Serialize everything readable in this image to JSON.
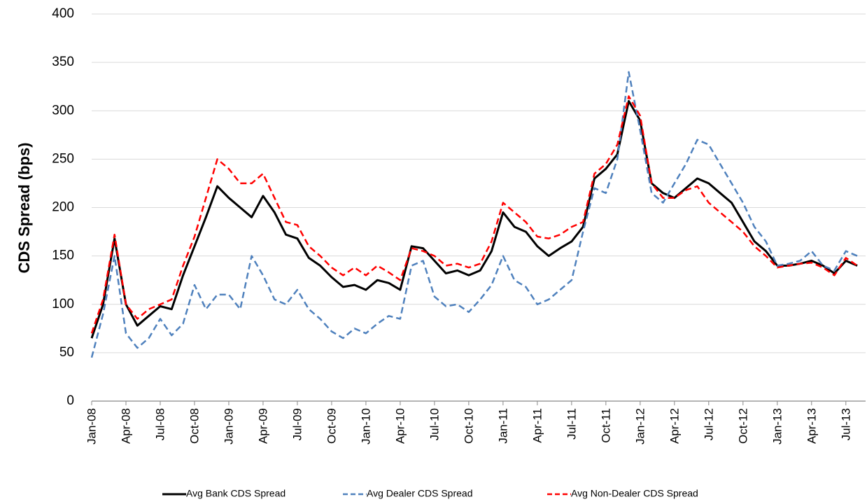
{
  "chart_data": {
    "type": "line",
    "y_label": "CDS Spread (bps)",
    "categories": [
      "Jan-08",
      null,
      null,
      "Apr-08",
      null,
      null,
      "Jul-08",
      null,
      null,
      "Oct-08",
      null,
      null,
      "Jan-09",
      null,
      null,
      "Apr-09",
      null,
      null,
      "Jul-09",
      null,
      null,
      "Oct-09",
      null,
      null,
      "Jan-10",
      null,
      null,
      "Apr-10",
      null,
      null,
      "Jul-10",
      null,
      null,
      "Oct-10",
      null,
      null,
      "Jan-11",
      null,
      null,
      "Apr-11",
      null,
      null,
      "Jul-11",
      null,
      null,
      "Oct-11",
      null,
      null,
      "Jan-12",
      null,
      null,
      "Apr-12",
      null,
      null,
      "Jul-12",
      null,
      null,
      "Oct-12",
      null,
      null,
      "Jan-13",
      null,
      null,
      "Apr-13",
      null,
      null,
      "Jul-13",
      null
    ],
    "series": [
      {
        "name": "Avg Bank CDS Spread",
        "color": "#000000",
        "dash": "solid",
        "values": [
          65,
          100,
          168,
          100,
          78,
          88,
          98,
          95,
          130,
          160,
          190,
          222,
          210,
          200,
          190,
          212,
          195,
          172,
          168,
          148,
          140,
          128,
          118,
          120,
          115,
          125,
          122,
          115,
          160,
          158,
          145,
          132,
          135,
          130,
          135,
          155,
          195,
          180,
          175,
          160,
          150,
          158,
          165,
          180,
          230,
          240,
          255,
          310,
          290,
          225,
          215,
          210,
          220,
          230,
          225,
          215,
          205,
          185,
          165,
          155,
          140,
          140,
          142,
          145,
          140,
          132,
          145,
          140
        ]
      },
      {
        "name": "Avg Dealer CDS Spread",
        "color": "#4f81bd",
        "dash": "dashed",
        "values": [
          45,
          90,
          150,
          70,
          55,
          65,
          85,
          68,
          80,
          120,
          95,
          110,
          110,
          95,
          150,
          130,
          105,
          100,
          115,
          95,
          85,
          72,
          65,
          75,
          70,
          80,
          88,
          85,
          140,
          145,
          108,
          98,
          100,
          92,
          105,
          120,
          150,
          125,
          118,
          100,
          105,
          115,
          125,
          175,
          220,
          215,
          250,
          340,
          280,
          215,
          205,
          225,
          245,
          270,
          265,
          245,
          225,
          205,
          180,
          165,
          140,
          142,
          145,
          155,
          140,
          135,
          155,
          150
        ]
      },
      {
        "name": "Avg Non-Dealer CDS Spread",
        "color": "#ff0000",
        "dash": "dashed",
        "values": [
          70,
          105,
          172,
          100,
          85,
          95,
          100,
          105,
          140,
          170,
          210,
          250,
          240,
          225,
          225,
          235,
          210,
          185,
          182,
          160,
          150,
          138,
          130,
          138,
          130,
          140,
          133,
          125,
          158,
          155,
          150,
          140,
          142,
          138,
          142,
          165,
          205,
          195,
          185,
          170,
          168,
          172,
          180,
          185,
          235,
          245,
          265,
          315,
          295,
          225,
          210,
          210,
          218,
          222,
          205,
          195,
          185,
          175,
          160,
          150,
          138,
          140,
          142,
          143,
          138,
          130,
          148,
          140
        ]
      }
    ],
    "ylim": [
      0,
      400
    ],
    "yticks": [
      0,
      50,
      100,
      150,
      200,
      250,
      300,
      350,
      400
    ],
    "grid": true,
    "legend": "bottom"
  }
}
